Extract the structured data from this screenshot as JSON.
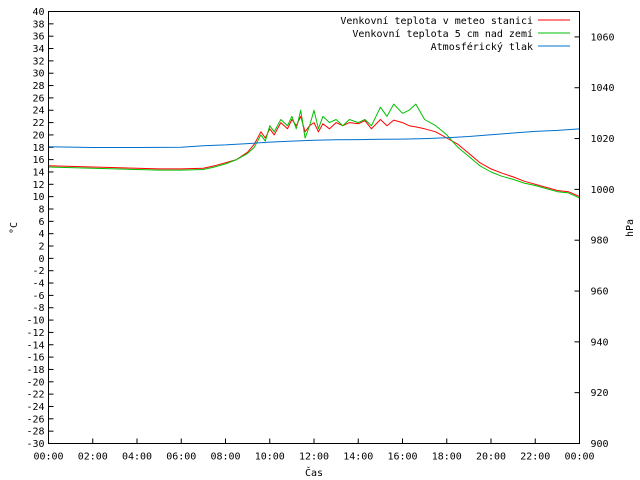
{
  "chart_data": {
    "type": "line",
    "xlabel": "Čas",
    "ylabel_left": "°C",
    "ylabel_right": "hPa",
    "x_ticks": [
      "00:00",
      "02:00",
      "04:00",
      "06:00",
      "08:00",
      "10:00",
      "12:00",
      "14:00",
      "16:00",
      "18:00",
      "20:00",
      "22:00",
      "00:00"
    ],
    "x_range_hours": [
      0,
      24
    ],
    "ylim_left": [
      -30,
      40
    ],
    "ylim_right": [
      900,
      1070
    ],
    "y_ticks_left": [
      40,
      38,
      36,
      34,
      32,
      30,
      28,
      26,
      24,
      22,
      20,
      18,
      16,
      14,
      12,
      10,
      8,
      6,
      4,
      2,
      0,
      -2,
      -4,
      -6,
      -8,
      -10,
      -12,
      -14,
      -16,
      -18,
      -20,
      -22,
      -24,
      -26,
      -28,
      -30
    ],
    "y_ticks_right": [
      1060,
      1040,
      1020,
      1000,
      980,
      960,
      940,
      920,
      900
    ],
    "legend_position": "top-right",
    "grid": false,
    "series": [
      {
        "name": "Venkovní teplota v meteo stanici",
        "axis": "left",
        "color": "#ff0000",
        "x": [
          0,
          1,
          2,
          3,
          4,
          5,
          6,
          7,
          7.5,
          8,
          8.5,
          9,
          9.3,
          9.6,
          9.8,
          10,
          10.2,
          10.5,
          10.8,
          11,
          11.2,
          11.4,
          11.6,
          11.8,
          12,
          12.2,
          12.4,
          12.7,
          13,
          13.3,
          13.6,
          14,
          14.3,
          14.6,
          15,
          15.3,
          15.6,
          16,
          16.3,
          16.6,
          17,
          17.5,
          18,
          18.5,
          19,
          19.5,
          20,
          20.5,
          21,
          21.5,
          22,
          22.5,
          23,
          23.5,
          24
        ],
        "y": [
          15,
          14.9,
          14.8,
          14.7,
          14.6,
          14.5,
          14.5,
          14.6,
          15,
          15.5,
          16,
          17.2,
          18.5,
          20.5,
          19.5,
          21,
          20,
          22,
          21,
          22.5,
          21.5,
          23,
          20.5,
          21.5,
          22,
          20.5,
          21.8,
          21,
          22,
          21.5,
          22,
          21.8,
          22.3,
          21,
          22.5,
          21.5,
          22.4,
          22,
          21.5,
          21.3,
          21,
          20.5,
          19.5,
          18.5,
          17,
          15.5,
          14.5,
          13.8,
          13.2,
          12.5,
          12,
          11.5,
          11,
          10.8,
          10
        ]
      },
      {
        "name": "Venkovní teplota 5 cm nad zemí",
        "axis": "left",
        "color": "#00c000",
        "x": [
          0,
          1,
          2,
          3,
          4,
          5,
          6,
          7,
          7.5,
          8,
          8.5,
          9,
          9.3,
          9.6,
          9.8,
          10,
          10.2,
          10.5,
          10.8,
          11,
          11.2,
          11.4,
          11.6,
          11.8,
          12,
          12.2,
          12.4,
          12.7,
          13,
          13.3,
          13.6,
          14,
          14.3,
          14.6,
          15,
          15.3,
          15.6,
          16,
          16.3,
          16.6,
          17,
          17.5,
          18,
          18.5,
          19,
          19.5,
          20,
          20.5,
          21,
          21.5,
          22,
          22.5,
          23,
          23.5,
          24
        ],
        "y": [
          14.8,
          14.7,
          14.6,
          14.5,
          14.4,
          14.3,
          14.3,
          14.4,
          14.8,
          15.3,
          16,
          17,
          18,
          20,
          19,
          21.5,
          20.5,
          22.5,
          21.5,
          23,
          21,
          24,
          19.5,
          21.5,
          24,
          21,
          23,
          22,
          22.5,
          21.5,
          22.5,
          22,
          22.5,
          21.5,
          24.5,
          23,
          25,
          23.5,
          24,
          25,
          22.5,
          21.5,
          20,
          18,
          16.5,
          15,
          14,
          13.3,
          12.8,
          12.2,
          11.8,
          11.3,
          10.8,
          10.6,
          9.8
        ]
      },
      {
        "name": "Atmosférický tlak",
        "axis": "right",
        "color": "#0070d0",
        "x": [
          0,
          2,
          4,
          6,
          7,
          8,
          9,
          10,
          11,
          12,
          13,
          14,
          15,
          16,
          17,
          18,
          19,
          20,
          21,
          22,
          23,
          24
        ],
        "y": [
          1016.8,
          1016.5,
          1016.5,
          1016.6,
          1017.2,
          1017.5,
          1018,
          1018.6,
          1019,
          1019.3,
          1019.5,
          1019.6,
          1019.7,
          1019.8,
          1020,
          1020.3,
          1020.8,
          1021.5,
          1022.2,
          1022.8,
          1023.2,
          1023.8
        ]
      }
    ]
  }
}
